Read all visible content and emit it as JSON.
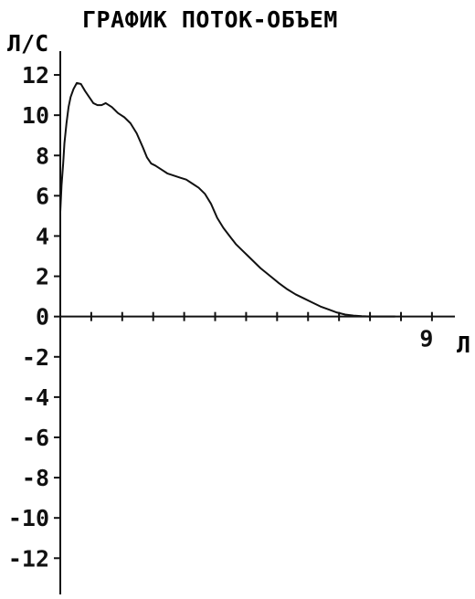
{
  "chart_data": {
    "type": "line",
    "title": "ГРАФИК ПОТОК-ОБЪЕМ",
    "ylabel": "Л/С",
    "xlabel": "Л",
    "xlim": [
      0,
      9.6
    ],
    "ylim": [
      -13.8,
      13
    ],
    "y_ticks": [
      12,
      10,
      8,
      6,
      4,
      2,
      0,
      -2,
      -4,
      -6,
      -8,
      -10,
      -12
    ],
    "y_tick_labels": [
      "12",
      "10",
      "8",
      "6",
      "4",
      "2",
      "0",
      "-2",
      "-4",
      "-6",
      "-8",
      "-10",
      "-12"
    ],
    "x_ticks": [
      0.75,
      1.5,
      2.25,
      3.0,
      3.75,
      4.5,
      5.25,
      6.0,
      6.75,
      7.5,
      8.25,
      9.0,
      9.75
    ],
    "x_labeled_ticks": [
      9
    ],
    "x_tick_labels": [
      "9"
    ],
    "series": [
      {
        "x": [
          0.0,
          0.0,
          0.03,
          0.07,
          0.1,
          0.15,
          0.2,
          0.25,
          0.32,
          0.4,
          0.5,
          0.6,
          0.7,
          0.8,
          0.9,
          1.0,
          1.1,
          1.25,
          1.4,
          1.55,
          1.7,
          1.85,
          2.0,
          2.1,
          2.2,
          2.3,
          2.45,
          2.6,
          2.75,
          2.9,
          3.05,
          3.2,
          3.35,
          3.5,
          3.65,
          3.8,
          3.95,
          4.1,
          4.25,
          4.4,
          4.55,
          4.7,
          4.85,
          5.0,
          5.15,
          5.3,
          5.5,
          5.7,
          5.9,
          6.1,
          6.3,
          6.5,
          6.7,
          6.9,
          7.1,
          7.3,
          7.5,
          7.65,
          7.8,
          7.95,
          8.1
        ],
        "y": [
          4.0,
          5.2,
          6.5,
          7.6,
          8.6,
          9.6,
          10.4,
          10.9,
          11.3,
          11.6,
          11.55,
          11.2,
          10.9,
          10.6,
          10.5,
          10.5,
          10.6,
          10.4,
          10.1,
          9.9,
          9.6,
          9.1,
          8.4,
          7.9,
          7.6,
          7.5,
          7.3,
          7.1,
          7.0,
          6.9,
          6.8,
          6.6,
          6.4,
          6.1,
          5.6,
          4.9,
          4.4,
          4.0,
          3.6,
          3.3,
          3.0,
          2.7,
          2.4,
          2.15,
          1.9,
          1.65,
          1.35,
          1.1,
          0.9,
          0.7,
          0.5,
          0.35,
          0.2,
          0.1,
          0.05,
          0.02,
          0.0,
          0.0,
          0.0,
          0.0,
          0.0
        ]
      }
    ],
    "grid": false,
    "colors": {
      "line": "#111111",
      "axis": "#111111",
      "text": "#111111"
    }
  }
}
